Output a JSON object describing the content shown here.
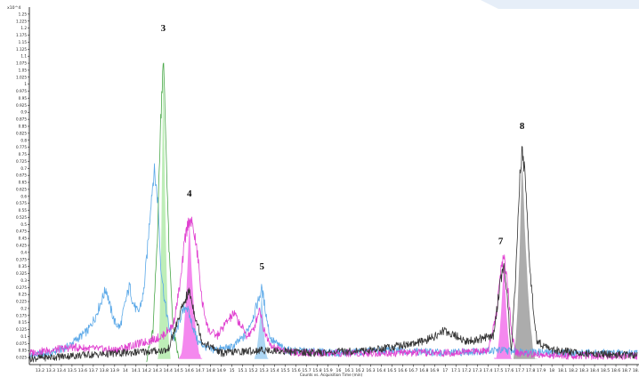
{
  "chart_data": {
    "type": "line",
    "title": "",
    "y_scale_label": "x10^4",
    "xlabel": "Counts vs. Acquisition Time (min)",
    "ylabel": "",
    "xlim": [
      13.1,
      18.8
    ],
    "ylim": [
      0,
      1.275
    ],
    "y_ticks": [
      "0.025",
      "0.05",
      "0.075",
      "0.1",
      "0.125",
      "0.15",
      "0.175",
      "0.2",
      "0.225",
      "0.25",
      "0.275",
      "0.3",
      "0.325",
      "0.35",
      "0.375",
      "0.4",
      "0.425",
      "0.45",
      "0.475",
      "0.5",
      "0.525",
      "0.55",
      "0.575",
      "0.6",
      "0.625",
      "0.65",
      "0.675",
      "0.7",
      "0.725",
      "0.75",
      "0.775",
      "0.8",
      "0.825",
      "0.85",
      "0.875",
      "0.9",
      "0.925",
      "0.95",
      "0.975",
      "1",
      "1.025",
      "1.05",
      "1.075",
      "1.1",
      "1.125",
      "1.15",
      "1.175",
      "1.2",
      "1.225",
      "1.25"
    ],
    "x_ticks": [
      "13.2",
      "13.3",
      "13.4",
      "13.5",
      "13.6",
      "13.7",
      "13.8",
      "13.9",
      "14",
      "14.1",
      "14.2",
      "14.3",
      "14.4",
      "14.5",
      "14.6",
      "14.7",
      "14.8",
      "14.9",
      "15",
      "15.1",
      "15.2",
      "15.3",
      "15.4",
      "15.5",
      "15.6",
      "15.7",
      "15.8",
      "15.9",
      "16",
      "16.1",
      "16.2",
      "16.3",
      "16.4",
      "16.5",
      "16.6",
      "16.7",
      "16.8",
      "16.9",
      "17",
      "17.1",
      "17.2",
      "17.3",
      "17.4",
      "17.5",
      "17.6",
      "17.7",
      "17.8",
      "17.9",
      "18",
      "18.1",
      "18.2",
      "18.3",
      "18.4",
      "18.5",
      "18.6",
      "18.7",
      "18.8"
    ],
    "grid": false,
    "legend": "none",
    "series": [
      {
        "color": "#5aa8e8",
        "points": [
          [
            13.1,
            0.03
          ],
          [
            13.3,
            0.04
          ],
          [
            13.45,
            0.06
          ],
          [
            13.55,
            0.09
          ],
          [
            13.65,
            0.12
          ],
          [
            13.72,
            0.17
          ],
          [
            13.78,
            0.23
          ],
          [
            13.82,
            0.27
          ],
          [
            13.86,
            0.2
          ],
          [
            13.9,
            0.15
          ],
          [
            13.95,
            0.13
          ],
          [
            14.0,
            0.22
          ],
          [
            14.04,
            0.28
          ],
          [
            14.07,
            0.22
          ],
          [
            14.12,
            0.18
          ],
          [
            14.17,
            0.25
          ],
          [
            14.21,
            0.42
          ],
          [
            14.24,
            0.58
          ],
          [
            14.27,
            0.69
          ],
          [
            14.29,
            0.63
          ],
          [
            14.31,
            0.56
          ],
          [
            14.33,
            0.36
          ],
          [
            14.37,
            0.22
          ],
          [
            14.41,
            0.13
          ],
          [
            14.46,
            0.09
          ],
          [
            14.52,
            0.17
          ],
          [
            14.57,
            0.21
          ],
          [
            14.62,
            0.15
          ],
          [
            14.68,
            0.08
          ],
          [
            14.8,
            0.05
          ],
          [
            15.0,
            0.06
          ],
          [
            15.12,
            0.1
          ],
          [
            15.2,
            0.17
          ],
          [
            15.25,
            0.23
          ],
          [
            15.28,
            0.27
          ],
          [
            15.31,
            0.2
          ],
          [
            15.36,
            0.09
          ],
          [
            15.5,
            0.05
          ],
          [
            16.0,
            0.04
          ],
          [
            16.5,
            0.05
          ],
          [
            17.0,
            0.04
          ],
          [
            17.5,
            0.05
          ],
          [
            18.0,
            0.04
          ],
          [
            18.8,
            0.04
          ]
        ]
      },
      {
        "color": "#4aa84a",
        "points": [
          [
            14.2,
            0.02
          ],
          [
            14.26,
            0.12
          ],
          [
            14.3,
            0.45
          ],
          [
            14.33,
            0.85
          ],
          [
            14.355,
            1.1
          ],
          [
            14.38,
            0.8
          ],
          [
            14.41,
            0.4
          ],
          [
            14.45,
            0.12
          ],
          [
            14.5,
            0.02
          ]
        ]
      },
      {
        "color": "#e040d0",
        "points": [
          [
            13.1,
            0.04
          ],
          [
            13.5,
            0.06
          ],
          [
            13.9,
            0.05
          ],
          [
            14.2,
            0.08
          ],
          [
            14.35,
            0.1
          ],
          [
            14.45,
            0.14
          ],
          [
            14.52,
            0.3
          ],
          [
            14.56,
            0.45
          ],
          [
            14.6,
            0.52
          ],
          [
            14.64,
            0.48
          ],
          [
            14.68,
            0.38
          ],
          [
            14.72,
            0.22
          ],
          [
            14.78,
            0.12
          ],
          [
            14.86,
            0.1
          ],
          [
            14.95,
            0.15
          ],
          [
            15.02,
            0.18
          ],
          [
            15.08,
            0.14
          ],
          [
            15.14,
            0.1
          ],
          [
            15.2,
            0.12
          ],
          [
            15.26,
            0.2
          ],
          [
            15.3,
            0.12
          ],
          [
            15.38,
            0.06
          ],
          [
            15.6,
            0.04
          ],
          [
            16.0,
            0.04
          ],
          [
            16.5,
            0.04
          ],
          [
            17.0,
            0.04
          ],
          [
            17.4,
            0.05
          ],
          [
            17.48,
            0.18
          ],
          [
            17.52,
            0.33
          ],
          [
            17.55,
            0.38
          ],
          [
            17.58,
            0.3
          ],
          [
            17.62,
            0.12
          ],
          [
            17.66,
            0.04
          ],
          [
            18.0,
            0.03
          ],
          [
            18.8,
            0.03
          ]
        ]
      },
      {
        "color": "#333333",
        "points": [
          [
            13.1,
            0.02
          ],
          [
            13.5,
            0.03
          ],
          [
            14.0,
            0.04
          ],
          [
            14.4,
            0.05
          ],
          [
            14.55,
            0.22
          ],
          [
            14.6,
            0.26
          ],
          [
            14.65,
            0.18
          ],
          [
            14.72,
            0.08
          ],
          [
            14.9,
            0.04
          ],
          [
            15.3,
            0.05
          ],
          [
            15.8,
            0.04
          ],
          [
            16.3,
            0.05
          ],
          [
            16.8,
            0.08
          ],
          [
            17.0,
            0.12
          ],
          [
            17.2,
            0.08
          ],
          [
            17.45,
            0.1
          ],
          [
            17.52,
            0.3
          ],
          [
            17.55,
            0.36
          ],
          [
            17.58,
            0.24
          ],
          [
            17.62,
            0.05
          ],
          [
            17.66,
            0.3
          ],
          [
            17.7,
            0.66
          ],
          [
            17.72,
            0.76
          ],
          [
            17.75,
            0.66
          ],
          [
            17.8,
            0.3
          ],
          [
            17.86,
            0.08
          ],
          [
            18.0,
            0.05
          ],
          [
            18.3,
            0.04
          ],
          [
            18.8,
            0.03
          ]
        ]
      }
    ],
    "filled_peaks": [
      {
        "label": "3",
        "color": "#a8e8a0",
        "start": 14.3,
        "end": 14.43,
        "apex_x": 14.355,
        "apex_y": 1.1
      },
      {
        "label": "4",
        "color": "#f060e8",
        "start": 14.5,
        "end": 14.72,
        "apex_x": 14.6,
        "apex_y": 0.52
      },
      {
        "label": "5",
        "color": "#90c8f0",
        "start": 15.2,
        "end": 15.34,
        "apex_x": 15.28,
        "apex_y": 0.27
      },
      {
        "label": "7",
        "color": "#f060e8",
        "start": 17.46,
        "end": 17.63,
        "apex_x": 17.55,
        "apex_y": 0.38
      },
      {
        "label": "8",
        "color": "#909090",
        "start": 17.63,
        "end": 17.86,
        "apex_x": 17.72,
        "apex_y": 0.76
      }
    ],
    "peak_labels": [
      {
        "text": "3",
        "x": 14.355,
        "y": 1.19
      },
      {
        "text": "4",
        "x": 14.6,
        "y": 0.6
      },
      {
        "text": "5",
        "x": 15.28,
        "y": 0.34
      },
      {
        "text": "7",
        "x": 17.52,
        "y": 0.43
      },
      {
        "text": "8",
        "x": 17.72,
        "y": 0.84
      }
    ]
  }
}
